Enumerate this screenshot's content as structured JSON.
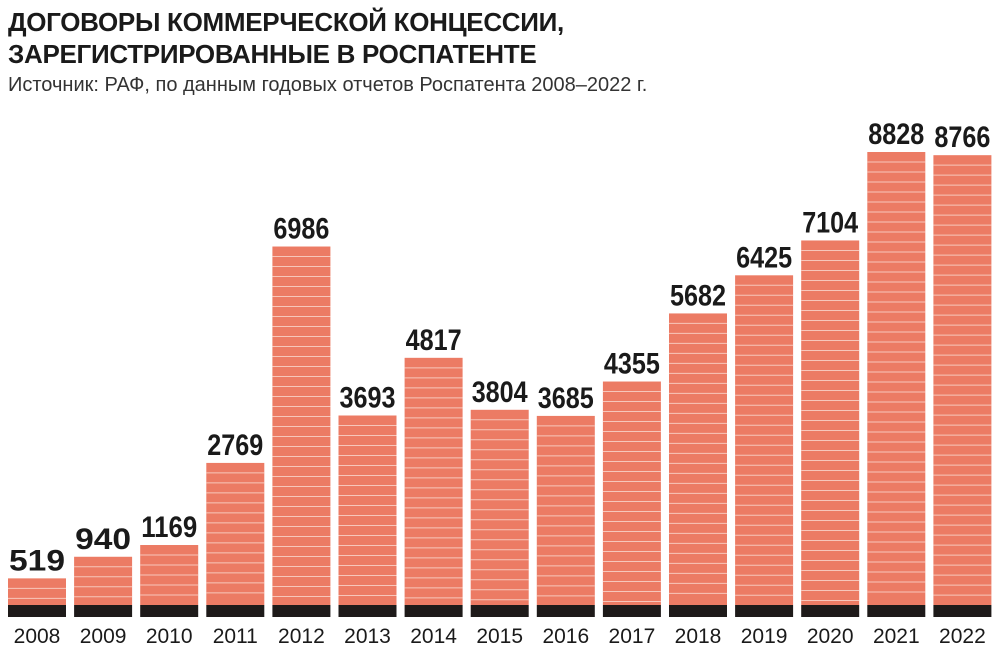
{
  "title_lines": [
    "ДОГОВОРЫ КОММЕРЧЕСКОЙ КОНЦЕССИИ,",
    "ЗАРЕГИСТРИРОВАННЫЕ В РОСПАТЕНТЕ"
  ],
  "source": "Источник: РАФ, по данным годовых отчетов Роспатента 2008–2022 г.",
  "colors": {
    "bar": "#ec7b64",
    "stripe": "#f9d4c9",
    "base": "#1e1a19"
  },
  "chart_data": {
    "type": "bar",
    "title": "ДОГОВОРЫ КОММЕРЧЕСКОЙ КОНЦЕССИИ, ЗАРЕГИСТРИРОВАННЫЕ В РОСПАТЕНТЕ",
    "subtitle": "Источник: РАФ, по данным годовых отчетов Роспатента 2008–2022 г.",
    "categories": [
      "2008",
      "2009",
      "2010",
      "2011",
      "2012",
      "2013",
      "2014",
      "2015",
      "2016",
      "2017",
      "2018",
      "2019",
      "2020",
      "2021",
      "2022"
    ],
    "values": [
      519,
      940,
      1169,
      2769,
      6986,
      3693,
      4817,
      3804,
      3685,
      4355,
      5682,
      6425,
      7104,
      8828,
      8766
    ],
    "xlabel": "",
    "ylabel": "",
    "ylim": [
      0,
      8828
    ],
    "grid": false,
    "legend": "none"
  }
}
